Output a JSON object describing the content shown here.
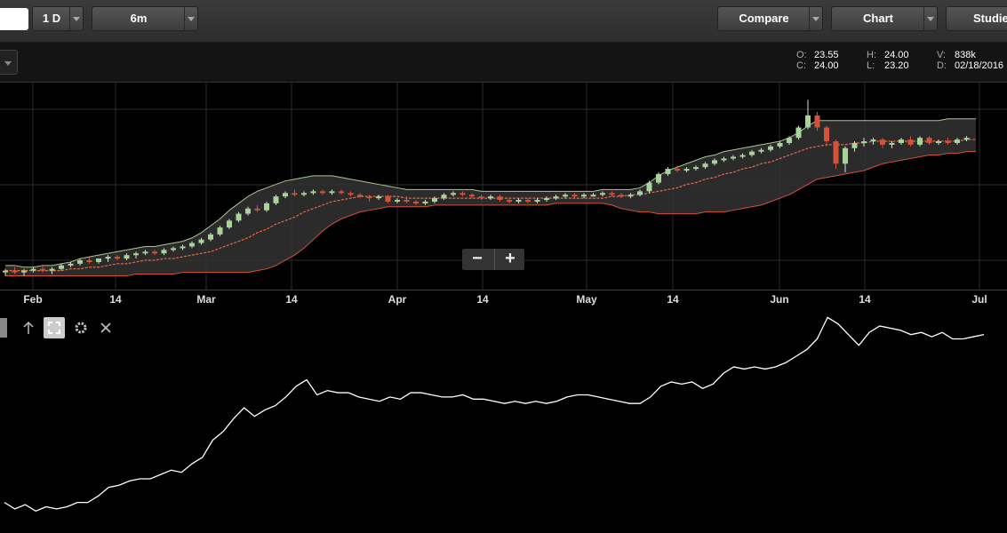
{
  "toolbar": {
    "interval_label": "1 D",
    "range_label": "6m",
    "compare_label": "Compare",
    "chart_label": "Chart",
    "studies_label": "Studies"
  },
  "ohlc": {
    "o_label": "O:",
    "o_value": "23.55",
    "c_label": "C:",
    "c_value": "24.00",
    "h_label": "H:",
    "h_value": "24.00",
    "l_label": "L:",
    "l_value": "23.20",
    "v_label": "V:",
    "v_value": "838k",
    "d_label": "D:",
    "d_value": "02/18/2016"
  },
  "xaxis_labels": [
    "Feb",
    "14",
    "Mar",
    "14",
    "Apr",
    "14",
    "May",
    "14",
    "Jun",
    "14",
    "Jul"
  ],
  "zoom": {
    "minus": "−",
    "plus": "+"
  },
  "icons": {
    "toggle": "square-icon",
    "arrow": "arrow-up-icon",
    "expand": "expand-icon",
    "settings": "gear-icon",
    "close": "close-icon"
  },
  "colors": {
    "up_candle": "#a8d49a",
    "down_candle": "#d4513a",
    "band_upper": "#a8c890",
    "band_lower": "#d4513a",
    "moving_average": "#e06a4a",
    "band_fill": "#333333",
    "study_line": "#ffffff"
  },
  "chart_data": {
    "type": "candlestick",
    "x_ticks": [
      "Feb",
      "14",
      "Mar",
      "14",
      "Apr",
      "14",
      "May",
      "14",
      "Jun",
      "14",
      "Jul"
    ],
    "grid": true,
    "overlays": [
      "bollinger-bands",
      "moving-average"
    ],
    "candles": [
      [
        16.5,
        16.7,
        16.3,
        16.6
      ],
      [
        16.6,
        16.8,
        16.4,
        16.5
      ],
      [
        16.5,
        16.7,
        16.3,
        16.6
      ],
      [
        16.6,
        16.8,
        16.5,
        16.7
      ],
      [
        16.7,
        16.9,
        16.5,
        16.6
      ],
      [
        16.6,
        16.8,
        16.4,
        16.7
      ],
      [
        16.7,
        17.0,
        16.6,
        16.9
      ],
      [
        16.9,
        17.1,
        16.8,
        17.0
      ],
      [
        17.0,
        17.3,
        16.9,
        17.2
      ],
      [
        17.2,
        17.4,
        17.0,
        17.1
      ],
      [
        17.1,
        17.3,
        17.0,
        17.3
      ],
      [
        17.3,
        17.5,
        17.1,
        17.4
      ],
      [
        17.4,
        17.5,
        17.2,
        17.3
      ],
      [
        17.3,
        17.6,
        17.2,
        17.5
      ],
      [
        17.5,
        17.7,
        17.3,
        17.6
      ],
      [
        17.6,
        17.8,
        17.5,
        17.7
      ],
      [
        17.7,
        17.8,
        17.5,
        17.6
      ],
      [
        17.6,
        17.9,
        17.5,
        17.8
      ],
      [
        17.8,
        18.0,
        17.7,
        17.9
      ],
      [
        17.9,
        18.1,
        17.8,
        18.0
      ],
      [
        18.0,
        18.3,
        17.9,
        18.2
      ],
      [
        18.2,
        18.5,
        18.1,
        18.4
      ],
      [
        18.4,
        18.8,
        18.3,
        18.7
      ],
      [
        18.7,
        19.2,
        18.6,
        19.1
      ],
      [
        19.1,
        19.6,
        19.0,
        19.5
      ],
      [
        19.5,
        20.0,
        19.4,
        19.9
      ],
      [
        19.9,
        20.3,
        19.8,
        20.2
      ],
      [
        20.2,
        20.4,
        20.0,
        20.1
      ],
      [
        20.1,
        20.6,
        20.0,
        20.5
      ],
      [
        20.5,
        21.0,
        20.4,
        20.9
      ],
      [
        20.9,
        21.2,
        20.8,
        21.1
      ],
      [
        21.1,
        21.3,
        20.9,
        21.0
      ],
      [
        21.0,
        21.2,
        20.9,
        21.1
      ],
      [
        21.1,
        21.3,
        21.0,
        21.2
      ],
      [
        21.2,
        21.3,
        21.0,
        21.1
      ],
      [
        21.1,
        21.3,
        21.0,
        21.2
      ],
      [
        21.2,
        21.3,
        21.0,
        21.1
      ],
      [
        21.1,
        21.2,
        20.9,
        21.0
      ],
      [
        21.0,
        21.1,
        20.8,
        20.9
      ],
      [
        20.9,
        21.0,
        20.6,
        20.8
      ],
      [
        20.8,
        21.0,
        20.7,
        20.9
      ],
      [
        20.9,
        21.0,
        20.5,
        20.6
      ],
      [
        20.6,
        20.8,
        20.5,
        20.7
      ],
      [
        20.7,
        20.9,
        20.5,
        20.6
      ],
      [
        20.6,
        20.7,
        20.4,
        20.5
      ],
      [
        20.5,
        20.7,
        20.4,
        20.6
      ],
      [
        20.6,
        20.9,
        20.5,
        20.8
      ],
      [
        20.8,
        21.1,
        20.7,
        21.0
      ],
      [
        21.0,
        21.2,
        20.9,
        21.1
      ],
      [
        21.1,
        21.2,
        20.9,
        21.0
      ],
      [
        21.0,
        21.1,
        20.8,
        20.9
      ],
      [
        20.9,
        21.0,
        20.7,
        20.8
      ],
      [
        20.8,
        21.0,
        20.7,
        20.9
      ],
      [
        20.9,
        21.0,
        20.6,
        20.7
      ],
      [
        20.7,
        20.8,
        20.5,
        20.6
      ],
      [
        20.6,
        20.8,
        20.5,
        20.7
      ],
      [
        20.7,
        20.8,
        20.5,
        20.6
      ],
      [
        20.6,
        20.8,
        20.5,
        20.7
      ],
      [
        20.7,
        20.9,
        20.6,
        20.8
      ],
      [
        20.8,
        21.0,
        20.7,
        20.9
      ],
      [
        20.9,
        21.1,
        20.8,
        21.0
      ],
      [
        21.0,
        21.1,
        20.8,
        20.9
      ],
      [
        20.9,
        21.1,
        20.8,
        21.0
      ],
      [
        21.0,
        21.1,
        20.9,
        21.0
      ],
      [
        21.0,
        21.2,
        20.9,
        21.1
      ],
      [
        21.1,
        21.2,
        20.9,
        21.0
      ],
      [
        21.0,
        21.1,
        20.8,
        20.9
      ],
      [
        20.9,
        21.1,
        20.8,
        21.0
      ],
      [
        21.0,
        21.3,
        20.9,
        21.2
      ],
      [
        21.2,
        21.8,
        21.1,
        21.7
      ],
      [
        21.7,
        22.3,
        21.6,
        22.2
      ],
      [
        22.2,
        22.6,
        22.1,
        22.5
      ],
      [
        22.5,
        22.7,
        22.3,
        22.4
      ],
      [
        22.4,
        22.6,
        22.3,
        22.5
      ],
      [
        22.5,
        22.7,
        22.4,
        22.6
      ],
      [
        22.6,
        22.9,
        22.5,
        22.8
      ],
      [
        22.8,
        23.1,
        22.7,
        23.0
      ],
      [
        23.0,
        23.2,
        22.9,
        23.1
      ],
      [
        23.1,
        23.3,
        23.0,
        23.2
      ],
      [
        23.2,
        23.4,
        23.1,
        23.3
      ],
      [
        23.3,
        23.6,
        23.2,
        23.5
      ],
      [
        23.5,
        23.7,
        23.4,
        23.6
      ],
      [
        23.6,
        23.9,
        23.5,
        23.8
      ],
      [
        23.8,
        24.1,
        23.7,
        24.0
      ],
      [
        24.0,
        24.4,
        23.9,
        24.3
      ],
      [
        24.3,
        25.0,
        24.2,
        24.9
      ],
      [
        24.9,
        26.5,
        24.8,
        25.6
      ],
      [
        25.6,
        25.8,
        24.7,
        24.9
      ],
      [
        24.9,
        25.0,
        23.8,
        24.1
      ],
      [
        24.1,
        24.2,
        22.5,
        22.8
      ],
      [
        22.8,
        23.8,
        22.3,
        23.7
      ],
      [
        23.7,
        24.1,
        23.5,
        24.0
      ],
      [
        24.0,
        24.3,
        23.8,
        24.1
      ],
      [
        24.1,
        24.3,
        23.9,
        24.2
      ],
      [
        24.2,
        24.3,
        23.7,
        23.9
      ],
      [
        23.9,
        24.1,
        23.7,
        24.0
      ],
      [
        24.0,
        24.3,
        23.9,
        24.2
      ],
      [
        24.2,
        24.4,
        23.8,
        23.9
      ],
      [
        23.9,
        24.4,
        23.8,
        24.3
      ],
      [
        24.3,
        24.4,
        23.9,
        24.0
      ],
      [
        24.0,
        24.2,
        23.9,
        24.1
      ],
      [
        24.1,
        24.3,
        23.9,
        24.0
      ],
      [
        24.0,
        24.3,
        23.9,
        24.2
      ],
      [
        24.2,
        24.4,
        24.1,
        24.3
      ]
    ],
    "bands": {
      "upper": [
        16.9,
        16.9,
        16.8,
        16.8,
        16.9,
        16.9,
        17.0,
        17.1,
        17.3,
        17.4,
        17.5,
        17.6,
        17.7,
        17.8,
        17.9,
        18.0,
        18.0,
        18.1,
        18.2,
        18.3,
        18.5,
        18.8,
        19.2,
        19.6,
        20.1,
        20.5,
        20.9,
        21.2,
        21.4,
        21.6,
        21.8,
        21.9,
        22.0,
        22.1,
        22.1,
        22.1,
        22.0,
        21.9,
        21.8,
        21.7,
        21.6,
        21.5,
        21.4,
        21.3,
        21.3,
        21.3,
        21.3,
        21.3,
        21.3,
        21.3,
        21.3,
        21.2,
        21.2,
        21.2,
        21.2,
        21.2,
        21.2,
        21.2,
        21.2,
        21.2,
        21.2,
        21.2,
        21.2,
        21.2,
        21.3,
        21.3,
        21.3,
        21.3,
        21.4,
        21.7,
        22.1,
        22.4,
        22.6,
        22.8,
        23.0,
        23.2,
        23.3,
        23.5,
        23.6,
        23.7,
        23.8,
        23.9,
        24.0,
        24.1,
        24.3,
        24.6,
        25.0,
        25.3,
        25.3,
        25.3,
        25.3,
        25.3,
        25.3,
        25.3,
        25.3,
        25.3,
        25.3,
        25.3,
        25.3,
        25.3,
        25.3,
        25.4,
        25.4,
        25.4,
        25.4
      ],
      "lower": [
        16.3,
        16.3,
        16.3,
        16.3,
        16.3,
        16.3,
        16.3,
        16.3,
        16.3,
        16.3,
        16.3,
        16.3,
        16.3,
        16.3,
        16.4,
        16.4,
        16.4,
        16.4,
        16.4,
        16.5,
        16.5,
        16.5,
        16.5,
        16.5,
        16.5,
        16.5,
        16.5,
        16.6,
        16.7,
        16.9,
        17.2,
        17.5,
        17.9,
        18.4,
        18.9,
        19.3,
        19.6,
        19.8,
        20.0,
        20.1,
        20.2,
        20.3,
        20.3,
        20.3,
        20.3,
        20.3,
        20.4,
        20.4,
        20.4,
        20.4,
        20.4,
        20.4,
        20.4,
        20.4,
        20.4,
        20.4,
        20.4,
        20.4,
        20.4,
        20.5,
        20.5,
        20.5,
        20.5,
        20.5,
        20.5,
        20.4,
        20.2,
        20.1,
        20.0,
        20.0,
        19.9,
        19.9,
        19.9,
        19.9,
        19.9,
        20.0,
        20.0,
        20.0,
        20.1,
        20.2,
        20.3,
        20.4,
        20.6,
        20.8,
        21.0,
        21.3,
        21.6,
        21.9,
        22.0,
        22.1,
        22.2,
        22.3,
        22.4,
        22.6,
        22.8,
        22.9,
        23.0,
        23.1,
        23.2,
        23.3,
        23.3,
        23.4,
        23.4,
        23.5,
        23.5
      ]
    },
    "moving_average": [
      16.6,
      16.6,
      16.6,
      16.6,
      16.6,
      16.6,
      16.6,
      16.7,
      16.7,
      16.8,
      16.8,
      16.9,
      17.0,
      17.0,
      17.1,
      17.2,
      17.2,
      17.3,
      17.3,
      17.4,
      17.5,
      17.6,
      17.7,
      17.9,
      18.1,
      18.3,
      18.5,
      18.8,
      19.0,
      19.3,
      19.5,
      19.7,
      20.0,
      20.2,
      20.4,
      20.6,
      20.7,
      20.8,
      20.9,
      20.9,
      20.9,
      20.9,
      20.9,
      20.8,
      20.8,
      20.8,
      20.8,
      20.8,
      20.8,
      20.8,
      20.8,
      20.8,
      20.8,
      20.8,
      20.8,
      20.8,
      20.8,
      20.8,
      20.8,
      20.8,
      20.8,
      20.8,
      20.8,
      20.8,
      20.8,
      20.9,
      20.9,
      21.0,
      21.0,
      21.1,
      21.2,
      21.3,
      21.4,
      21.6,
      21.7,
      21.9,
      22.0,
      22.2,
      22.3,
      22.5,
      22.6,
      22.8,
      22.9,
      23.1,
      23.3,
      23.5,
      23.7,
      23.8,
      23.9,
      23.9,
      23.9,
      24.0,
      24.0,
      24.1,
      24.1,
      24.1,
      24.1,
      24.1,
      24.1,
      24.1,
      24.1,
      24.1,
      24.1,
      24.2,
      24.2
    ],
    "lower_panel_line": [
      16.6,
      16.3,
      16.5,
      16.2,
      16.4,
      16.3,
      16.4,
      16.6,
      16.6,
      16.9,
      17.3,
      17.4,
      17.6,
      17.7,
      17.7,
      17.9,
      18.1,
      18.0,
      18.4,
      18.7,
      19.5,
      19.9,
      20.5,
      21.0,
      20.6,
      20.9,
      21.1,
      21.5,
      22.0,
      22.3,
      21.6,
      21.8,
      21.7,
      21.7,
      21.5,
      21.4,
      21.3,
      21.5,
      21.4,
      21.7,
      21.7,
      21.6,
      21.5,
      21.5,
      21.6,
      21.4,
      21.4,
      21.3,
      21.2,
      21.3,
      21.2,
      21.3,
      21.2,
      21.3,
      21.5,
      21.6,
      21.6,
      21.5,
      21.4,
      21.3,
      21.2,
      21.2,
      21.5,
      22.0,
      22.2,
      22.1,
      22.2,
      21.9,
      22.1,
      22.6,
      22.9,
      22.8,
      22.9,
      22.8,
      22.9,
      23.1,
      23.4,
      23.7,
      24.2,
      25.2,
      24.9,
      24.4,
      23.9,
      24.5,
      24.8,
      24.7,
      24.6,
      24.4,
      24.5,
      24.3,
      24.5,
      24.2,
      24.2,
      24.3,
      24.4
    ]
  }
}
